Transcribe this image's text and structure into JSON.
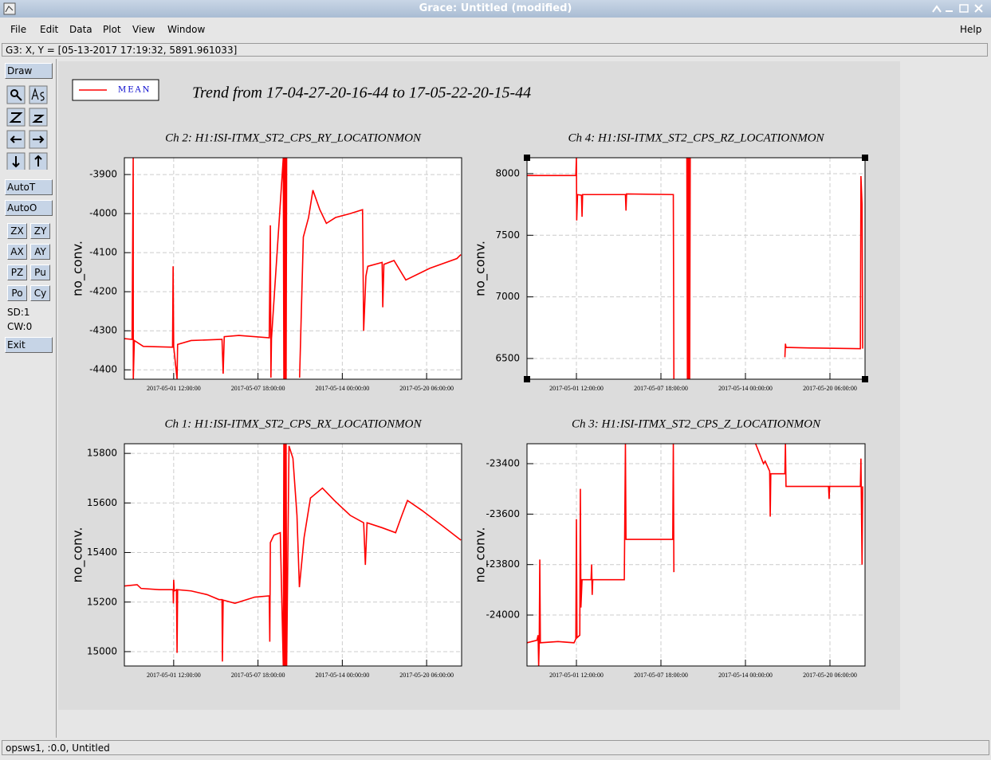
{
  "window": {
    "title": "Grace: Untitled (modified)"
  },
  "menu": {
    "items": [
      "File",
      "Edit",
      "Data",
      "Plot",
      "View",
      "Window"
    ],
    "help": "Help"
  },
  "locator": "G3: X, Y = [05-13-2017 17:19:32, 5891.961033]",
  "toolbar": {
    "draw": "Draw",
    "auto_t": "AutoT",
    "auto_o": "AutoO",
    "buttons": [
      "ZX",
      "ZY",
      "AX",
      "AY",
      "PZ",
      "Pu",
      "Po",
      "Cy"
    ],
    "sd": "SD:1",
    "cw": "CW:0",
    "exit": "Exit"
  },
  "status": "opsws1, :0.0, Untitled",
  "figure_title": "Trend from 17-04-27-20-16-44 to 17-05-22-20-15-44",
  "legend": {
    "label": "MEAN",
    "color": "#ff0000"
  },
  "chart_data": [
    {
      "type": "line",
      "title": "Ch 2: H1:ISI-ITMX_ST2_CPS_RY_LOCATIONMON",
      "ylabel": "no_conv.",
      "grid": true,
      "xlim": [
        "2017-04-27 20:16:44",
        "2017-05-22 20:15:44"
      ],
      "ylim": [
        -4424,
        -3857
      ],
      "xticks": [
        "2017-05-01 12:00:00",
        "2017-05-07 18:00:00",
        "2017-05-14 00:00:00",
        "2017-05-20 06:00:00"
      ],
      "yticks": [
        -4400,
        -4300,
        -4200,
        -4100,
        -4000,
        -3900
      ],
      "x": [
        "2017-04-27 20:16:44",
        "2017-04-28 10:00:00",
        "2017-04-28 12:00:00",
        "2017-04-28 12:10:00",
        "2017-04-28 14:00:00",
        "2017-04-29 06:00:00",
        "2017-05-01 10:00:00",
        "2017-05-01 11:00:00",
        "2017-05-01 12:00:00",
        "2017-05-01 18:00:00",
        "2017-05-01 19:00:00",
        "2017-05-02 19:00:00",
        "2017-05-05 02:00:00",
        "2017-05-05 04:00:00",
        "2017-05-05 06:00:00",
        "2017-05-06 08:00:00",
        "2017-05-08 14:00:00",
        "2017-05-08 16:00:00",
        "2017-05-08 17:00:00",
        "2017-05-08 18:00:00",
        "2017-05-09 15:00:00",
        "2017-05-09 16:00:00",
        "2017-05-09 17:00:00",
        "2017-05-09 18:00:00",
        "2017-05-09 19:00:00",
        "2017-05-09 20:00:00",
        "2017-05-09 21:00:00",
        "2017-05-09 21:30:00",
        "2017-05-10 20:00:00",
        "2017-05-11 02:40:00",
        "2017-05-11 12:00:00",
        "2017-05-11 19:40:00",
        "2017-05-12 08:00:00",
        "2017-05-12 19:40:00",
        "2017-05-13 12:00:00",
        "2017-05-14 14:00:00",
        "2017-05-15 12:00:00",
        "2017-05-15 14:00:00",
        "2017-05-15 18:00:00",
        "2017-05-15 21:20:00",
        "2017-05-16 22:50:00",
        "2017-05-17 00:00:00",
        "2017-05-17 02:00:00",
        "2017-05-17 20:00:00",
        "2017-05-18 17:00:00",
        "2017-05-20 11:40:00",
        "2017-05-22 12:00:00",
        "2017-05-22 19:00:00"
      ],
      "series": [
        {
          "color": "#ff0000",
          "values": [
            -4320,
            -4322,
            -3857,
            -4424,
            -4325,
            -4340,
            -4342,
            -4135,
            -4340,
            -4424,
            -4335,
            -4325,
            -4322,
            -4410,
            -4315,
            -4312,
            -4318,
            -4030,
            -4420,
            -4320,
            -3857,
            -4424,
            -3857,
            -4424,
            -3857,
            -4424,
            -3857,
            null,
            -4420,
            -4060,
            -4010,
            -3940,
            -3990,
            -4025,
            -4010,
            -4000,
            -3990,
            -4300,
            -4160,
            -4135,
            -4125,
            -4240,
            -4130,
            -4120,
            -4170,
            -4140,
            -4115,
            -4105
          ]
        }
      ]
    },
    {
      "type": "line",
      "title": "Ch 4: H1:ISI-ITMX_ST2_CPS_RZ_LOCATIONMON",
      "ylabel": "no_conv.",
      "grid": true,
      "xlim": [
        "2017-04-27 20:16:44",
        "2017-05-22 20:15:44"
      ],
      "ylim": [
        6332,
        8129
      ],
      "xticks": [
        "2017-05-01 12:00:00",
        "2017-05-07 18:00:00",
        "2017-05-14 00:00:00",
        "2017-05-20 06:00:00"
      ],
      "yticks": [
        6500,
        7000,
        7500,
        8000
      ],
      "x": [
        "2017-04-27 20:16:44",
        "2017-05-01 11:00:00",
        "2017-05-01 12:00:00",
        "2017-05-01 12:30:00",
        "2017-05-01 14:00:00",
        "2017-05-01 21:00:00",
        "2017-05-01 22:00:00",
        "2017-05-01 23:00:00",
        "2017-05-05 03:00:00",
        "2017-05-05 04:00:00",
        "2017-05-05 05:00:00",
        "2017-05-08 16:00:00",
        "2017-05-08 17:00:00",
        "2017-05-08 17:30:00",
        "2017-05-09 16:00:00",
        "2017-05-09 17:00:00",
        "2017-05-09 18:00:00",
        "2017-05-09 19:00:00",
        "2017-05-09 20:00:00",
        "2017-05-09 21:00:00",
        "2017-05-09 22:00:00",
        "2017-05-09 23:00:00",
        "2017-05-16 22:00:00",
        "2017-05-16 23:00:00",
        "2017-05-17 00:00:00",
        "2017-05-19 00:00:00",
        "2017-05-22 12:00:00",
        "2017-05-22 13:00:00",
        "2017-05-22 15:00:00",
        "2017-05-22 16:00:00"
      ],
      "series": [
        {
          "color": "#ff0000",
          "values": [
            7985,
            7985,
            8129,
            7620,
            7830,
            7825,
            7650,
            7830,
            7830,
            7700,
            7835,
            7830,
            6332,
            null,
            8129,
            6332,
            8129,
            6332,
            8129,
            6332,
            8129,
            null,
            6510,
            6620,
            6590,
            6585,
            6580,
            7980,
            7750,
            6580
          ]
        }
      ]
    },
    {
      "type": "line",
      "title": "Ch 1: H1:ISI-ITMX_ST2_CPS_RX_LOCATIONMON",
      "ylabel": "no_conv.",
      "grid": true,
      "xlim": [
        "2017-04-27 20:16:44",
        "2017-05-22 20:15:44"
      ],
      "ylim": [
        14942,
        15839
      ],
      "xticks": [
        "2017-05-01 12:00:00",
        "2017-05-07 18:00:00",
        "2017-05-14 00:00:00",
        "2017-05-20 06:00:00"
      ],
      "yticks": [
        15000,
        15200,
        15400,
        15600,
        15800
      ],
      "x": [
        "2017-04-27 20:16:44",
        "2017-04-28 19:00:00",
        "2017-04-29 02:00:00",
        "2017-04-30 10:30:00",
        "2017-05-01 11:00:00",
        "2017-05-01 11:30:00",
        "2017-05-01 12:00:00",
        "2017-05-01 13:00:00",
        "2017-05-01 17:00:00",
        "2017-05-01 18:00:00",
        "2017-05-01 19:00:00",
        "2017-05-02 19:00:00",
        "2017-05-03 23:30:00",
        "2017-05-04 20:40:00",
        "2017-05-05 02:00:00",
        "2017-05-05 02:40:00",
        "2017-05-05 04:00:00",
        "2017-05-06 01:00:00",
        "2017-05-07 12:15:00",
        "2017-05-08 14:00:00",
        "2017-05-08 15:00:00",
        "2017-05-08 16:00:00",
        "2017-05-08 22:20:00",
        "2017-05-09 09:40:00",
        "2017-05-09 15:00:00",
        "2017-05-09 16:00:00",
        "2017-05-09 17:00:00",
        "2017-05-09 18:00:00",
        "2017-05-09 19:00:00",
        "2017-05-09 20:00:00",
        "2017-05-09 21:00:00",
        "2017-05-10 01:10:00",
        "2017-05-10 08:10:00",
        "2017-05-10 15:20:00",
        "2017-05-10 19:40:00",
        "2017-05-11 04:00:00",
        "2017-05-11 15:20:00",
        "2017-05-12 12:40:00",
        "2017-05-13 09:50:00",
        "2017-05-14 14:00:00",
        "2017-05-15 14:00:00",
        "2017-05-15 17:00:00",
        "2017-05-15 20:00:00",
        "2017-05-16 22:50:00",
        "2017-05-17 22:50:00",
        "2017-05-18 10:00:00",
        "2017-05-18 20:00:00",
        "2017-05-19 21:40:00",
        "2017-05-21 08:50:00",
        "2017-05-22 19:00:00"
      ],
      "series": [
        {
          "color": "#ff0000",
          "values": [
            15265,
            15270,
            15255,
            15250,
            15250,
            15195,
            15290,
            15245,
            15250,
            14995,
            15250,
            15245,
            15230,
            15210,
            15210,
            14960,
            15208,
            15195,
            15220,
            15225,
            15040,
            15440,
            15470,
            15480,
            14942,
            15839,
            14942,
            15839,
            14942,
            15839,
            14942,
            15830,
            15780,
            15550,
            15260,
            15460,
            15620,
            15660,
            15610,
            15550,
            15520,
            15350,
            15520,
            15500,
            15480,
            15550,
            15610,
            15570,
            15510,
            15450
          ]
        }
      ]
    },
    {
      "type": "line",
      "title": "Ch 3: H1:ISI-ITMX_ST2_CPS_Z_LOCATIONMON",
      "ylabel": "no_conv.",
      "grid": true,
      "xlim": [
        "2017-04-27 20:16:44",
        "2017-05-22 20:15:44"
      ],
      "ylim": [
        -24202,
        -23321
      ],
      "xticks": [
        "2017-05-01 12:00:00",
        "2017-05-07 18:00:00",
        "2017-05-14 00:00:00",
        "2017-05-20 06:00:00"
      ],
      "yticks": [
        -24000,
        -23800,
        -23600,
        -23400
      ],
      "x": [
        "2017-04-27 20:16:44",
        "2017-04-28 14:00:00",
        "2017-04-28 16:00:00",
        "2017-04-28 17:00:00",
        "2017-04-28 18:00:00",
        "2017-04-28 19:00:00",
        "2017-04-28 20:00:00",
        "2017-04-30 03:20:00",
        "2017-05-01 07:45:00",
        "2017-05-01 11:00:00",
        "2017-05-01 12:00:00",
        "2017-05-01 13:00:00",
        "2017-05-01 18:00:00",
        "2017-05-01 19:00:00",
        "2017-05-01 20:00:00",
        "2017-05-01 22:00:00",
        "2017-05-02 14:00:00",
        "2017-05-02 15:00:00",
        "2017-05-02 16:00:00",
        "2017-05-02 17:00:00",
        "2017-05-05 01:00:00",
        "2017-05-05 03:00:00",
        "2017-05-05 04:00:00",
        "2017-05-08 15:00:00",
        "2017-05-08 16:00:00",
        "2017-05-08 17:00:00",
        "2017-05-08 18:00:00",
        "2017-05-14 18:00:00",
        "2017-05-15 08:00:00",
        "2017-05-15 11:00:00",
        "2017-05-15 19:00:00",
        "2017-05-15 20:00:00",
        "2017-05-15 21:00:00",
        "2017-05-16 22:00:00",
        "2017-05-16 23:00:00",
        "2017-05-17 00:00:00",
        "2017-05-17 20:00:00",
        "2017-05-20 03:30:00",
        "2017-05-20 04:30:00",
        "2017-05-20 05:30:00",
        "2017-05-22 12:00:00",
        "2017-05-22 13:00:00",
        "2017-05-22 15:00:00",
        "2017-05-22 16:00:00"
      ],
      "series": [
        {
          "color": "#ff0000",
          "values": [
            -24110,
            -24100,
            -24080,
            -24202,
            -24110,
            -23780,
            -24110,
            -24105,
            -24110,
            -24095,
            -23620,
            -24090,
            -24080,
            -23500,
            -23970,
            -23860,
            -23860,
            -23800,
            -23920,
            -23860,
            -23860,
            -23321,
            -23700,
            -23700,
            -23321,
            -23830,
            null,
            -23321,
            -23400,
            -23390,
            -23430,
            -23610,
            -23440,
            -23440,
            -23321,
            -23490,
            -23490,
            -23490,
            -23540,
            -23490,
            -23490,
            -23380,
            -23800,
            -23490
          ]
        }
      ]
    }
  ]
}
